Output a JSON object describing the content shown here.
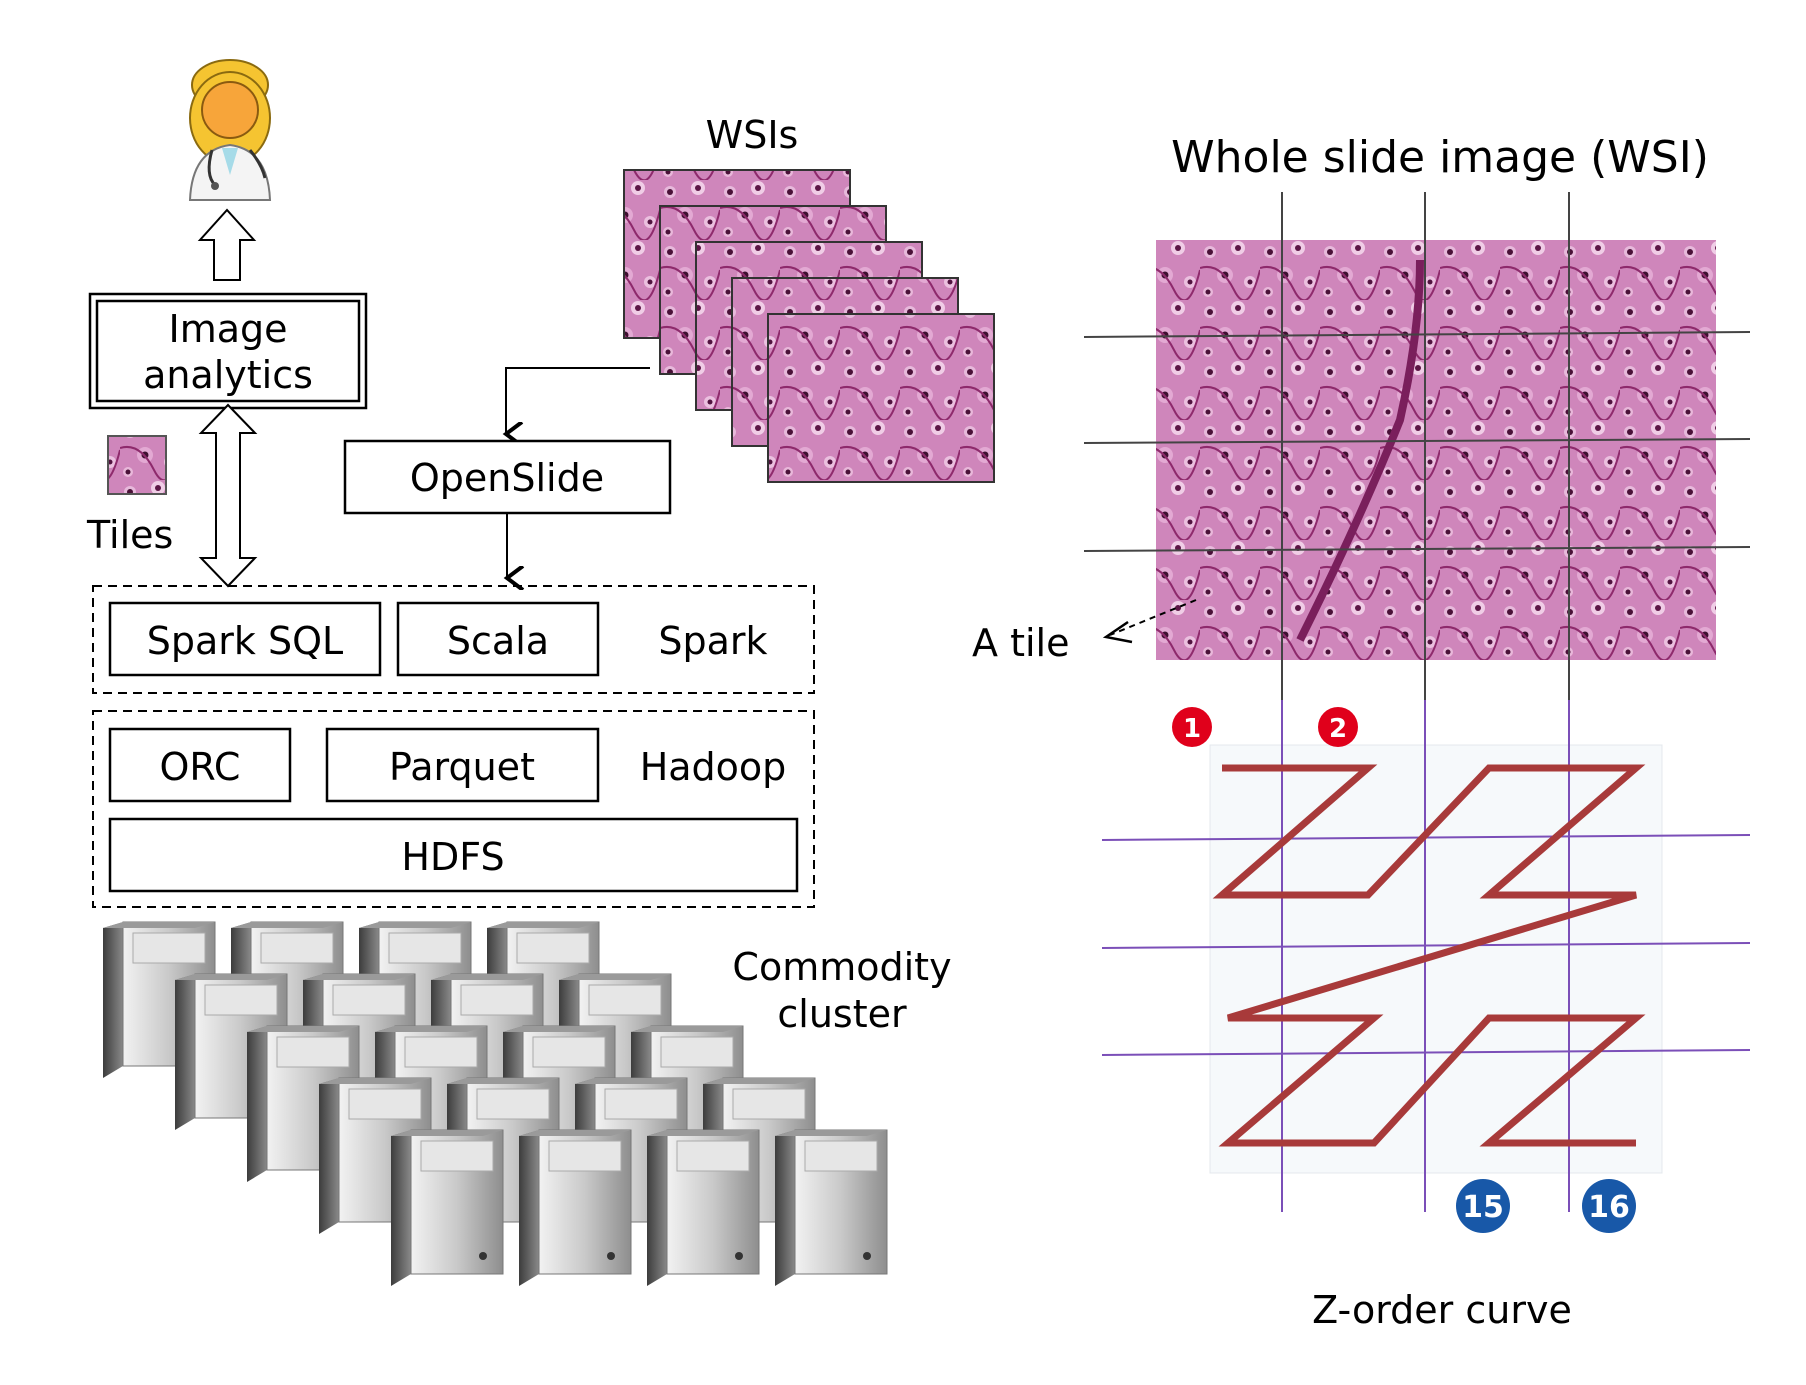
{
  "left": {
    "image_analytics": [
      "Image",
      "analytics"
    ],
    "tiles_label": "Tiles",
    "wsis_label": "WSIs",
    "openslide": "OpenSlide",
    "spark_row": {
      "spark_sql": "Spark SQL",
      "scala": "Scala",
      "group": "Spark"
    },
    "hadoop_row": {
      "orc": "ORC",
      "parquet": "Parquet",
      "group": "Hadoop",
      "hdfs": "HDFS"
    },
    "cluster_label": [
      "Commodity",
      "cluster"
    ]
  },
  "right": {
    "wsi_title": "Whole slide image (WSI)",
    "tile_label": "A tile",
    "badges": {
      "first": "1",
      "second": "2",
      "fifteenth": "15",
      "sixteenth": "16"
    },
    "zorder_label": "Z-order curve"
  },
  "colors": {
    "tissue_pink": "#c879b4",
    "tissue_dark": "#7a1f5c",
    "z_curve": "#a83a3a",
    "grid_purple": "#7b4fb8",
    "badge_red": "#e0001b",
    "badge_blue": "#1858a8"
  }
}
